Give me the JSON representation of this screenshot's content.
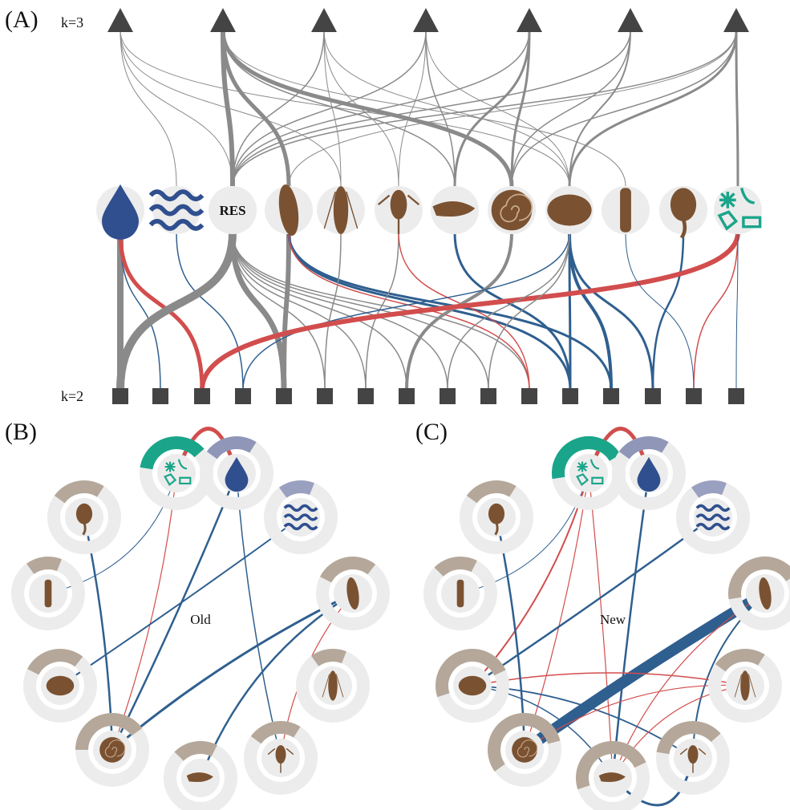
{
  "panels": {
    "a": {
      "label": "(A)",
      "top_level": "k=3",
      "bottom_level": "k=2",
      "res_node": "RES"
    },
    "b": {
      "label": "(B)",
      "center": "Old"
    },
    "c": {
      "label": "(C)",
      "center": "New"
    }
  }
}
